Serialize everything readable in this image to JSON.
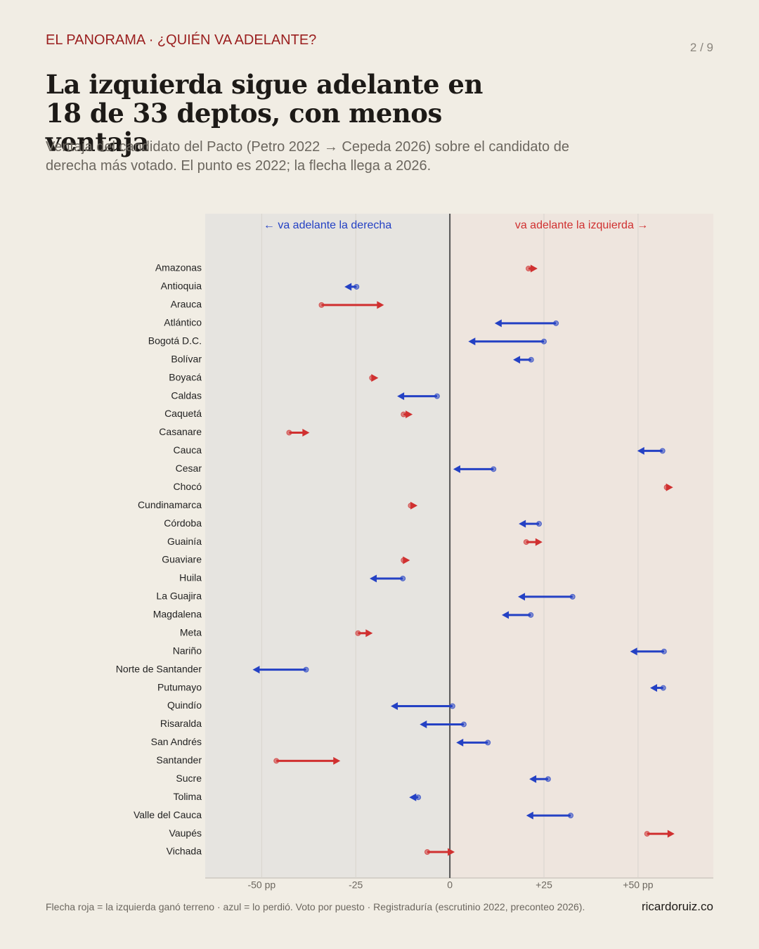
{
  "kicker": "EL PANORAMA · ¿QUIÉN VA ADELANTE?",
  "page": "2 / 9",
  "chart_data": {
    "type": "arrow",
    "title": "La izquierda sigue adelante en 18 de 33 deptos, con menos ventaja",
    "subtitle": "Ventaja del candidato del Pacto (Petro 2022 → Cepeda 2026) sobre el candidato de derecha más votado. El punto es 2022; la flecha llega a 2026.",
    "left_label": "← va adelante la derecha",
    "right_label": "va adelante la izquierda →",
    "categories": [
      "Amazonas",
      "Antioquia",
      "Arauca",
      "Atlántico",
      "Bogotá D.C.",
      "Bolívar",
      "Boyacá",
      "Caldas",
      "Caquetá",
      "Casanare",
      "Cauca",
      "Cesar",
      "Chocó",
      "Cundinamarca",
      "Córdoba",
      "Guainía",
      "Guaviare",
      "Huila",
      "La Guajira",
      "Magdalena",
      "Meta",
      "Nariño",
      "Norte de Santander",
      "Putumayo",
      "Quindío",
      "Risaralda",
      "San Andrés",
      "Santander",
      "Sucre",
      "Tolima",
      "Valle del Cauca",
      "Vaupés",
      "Vichada"
    ],
    "start": [
      20.9,
      -24.8,
      -34.1,
      28.2,
      25.0,
      21.6,
      -20.7,
      -3.4,
      -12.3,
      -42.7,
      56.5,
      11.6,
      57.6,
      -10.4,
      23.7,
      20.3,
      -12.3,
      -12.5,
      32.6,
      21.5,
      -24.4,
      56.9,
      -38.2,
      56.7,
      0.7,
      3.7,
      10.1,
      -46.1,
      26.1,
      -8.4,
      32.1,
      52.4,
      -6.0
    ],
    "end": [
      23.3,
      -28.0,
      -17.5,
      11.9,
      4.9,
      16.8,
      -19.0,
      -14.0,
      -9.9,
      -37.3,
      49.8,
      0.9,
      59.3,
      -8.6,
      18.3,
      24.6,
      -10.6,
      -21.3,
      18.1,
      13.8,
      -20.5,
      47.9,
      -52.4,
      53.2,
      -15.7,
      -8.0,
      1.7,
      -29.1,
      21.1,
      -10.8,
      20.3,
      59.7,
      1.3
    ],
    "gain_color": "#d03030",
    "loss_color": "#2441c4",
    "xlim": [
      -65,
      70
    ],
    "xticks": [
      {
        "value": -50,
        "label": "-50 pp"
      },
      -25,
      0,
      {
        "value": 25,
        "label": "+25"
      },
      {
        "value": 50,
        "label": "+50 pp"
      }
    ],
    "grid": true
  },
  "footer": {
    "note": "Flecha roja = la izquierda ganó terreno · azul = lo perdió. Voto por puesto · Registraduría (escrutinio 2022, preconteo 2026).",
    "brand": "ricardoruiz.co"
  }
}
